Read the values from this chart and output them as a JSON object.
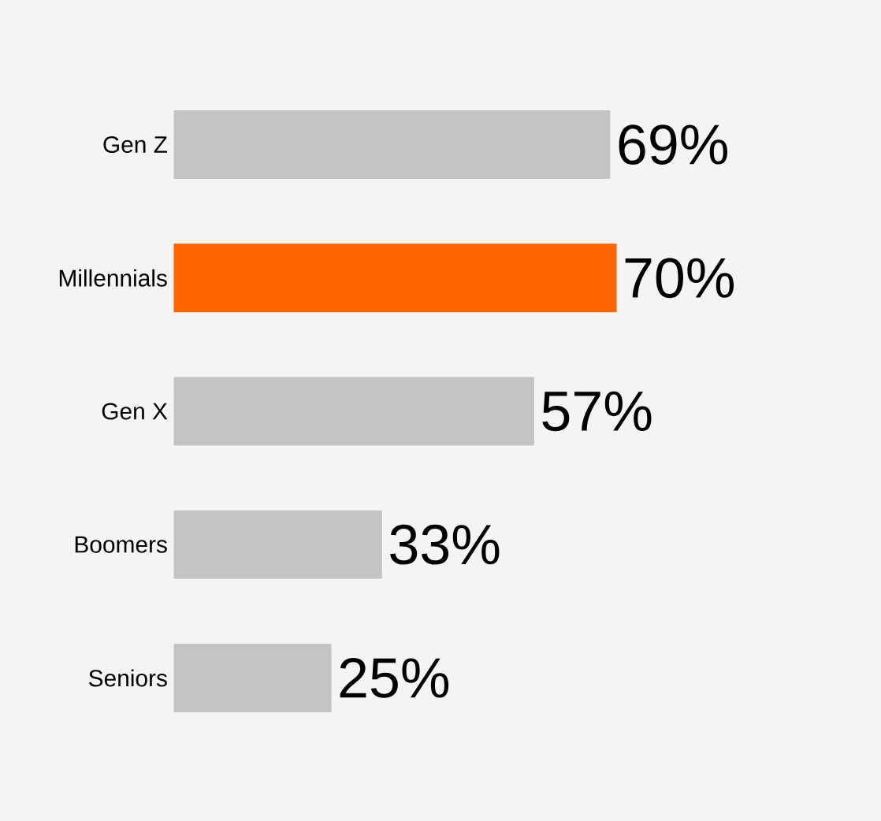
{
  "chart_data": {
    "type": "bar",
    "orientation": "horizontal",
    "categories": [
      "Gen Z",
      "Millennials",
      "Gen X",
      "Boomers",
      "Seniors"
    ],
    "values": [
      69,
      70,
      57,
      33,
      25
    ],
    "colors": [
      "#c4c4c4",
      "#ff6600",
      "#c4c4c4",
      "#c4c4c4",
      "#c4c4c4"
    ],
    "value_labels": [
      "69%",
      "70%",
      "57%",
      "33%",
      "25%"
    ]
  }
}
